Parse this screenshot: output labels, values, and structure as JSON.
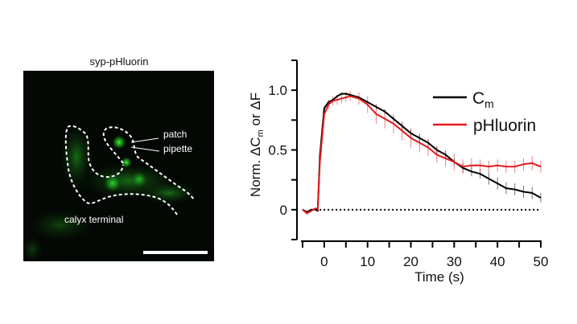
{
  "micrograph": {
    "title": "syp-pHluorin",
    "label_patch": "patch",
    "label_pipette": "pipette",
    "label_calyx": "calyx terminal",
    "fluorescence_color": "#22cc22"
  },
  "chart_data": {
    "type": "line",
    "title": "",
    "xlabel": "Time (s)",
    "ylabel_parts": {
      "prefix": "Norm. ΔC",
      "sub": "m",
      "suffix": " or ΔF"
    },
    "xlim": [
      -5,
      50
    ],
    "ylim": [
      -0.25,
      1.25
    ],
    "xticks": [
      0,
      10,
      20,
      30,
      40,
      50
    ],
    "xticks_minor": [
      -5,
      5,
      15,
      25,
      35,
      45
    ],
    "yticks": [
      0,
      0.5,
      1.0
    ],
    "ytick_labels": [
      "0",
      "0.5",
      "1.0"
    ],
    "yticks_minor": [
      0.25,
      0.75
    ],
    "baseline": 0,
    "legend_position": "top-right",
    "series": [
      {
        "name": "C",
        "name_sub": "m",
        "color": "#000000",
        "x": [
          -5,
          -4,
          -3,
          -2,
          -1.5,
          -1,
          0,
          1,
          2,
          3,
          4,
          5,
          6,
          8,
          10,
          12,
          14,
          16,
          18,
          20,
          22,
          24,
          26,
          28,
          30,
          32,
          34,
          36,
          38,
          40,
          42,
          44,
          46,
          48,
          50
        ],
        "y": [
          0,
          -0.02,
          0,
          0,
          -0.01,
          0.45,
          0.85,
          0.9,
          0.92,
          0.95,
          0.97,
          0.97,
          0.96,
          0.94,
          0.9,
          0.86,
          0.82,
          0.76,
          0.7,
          0.64,
          0.6,
          0.56,
          0.5,
          0.46,
          0.4,
          0.35,
          0.32,
          0.3,
          0.26,
          0.22,
          0.18,
          0.17,
          0.15,
          0.14,
          0.1
        ],
        "err": [
          0,
          0,
          0,
          0,
          0,
          0,
          0.01,
          0.01,
          0.01,
          0.01,
          0.01,
          0.01,
          0.01,
          0.01,
          0.01,
          0.02,
          0.02,
          0.02,
          0.03,
          0.03,
          0.03,
          0.03,
          0.03,
          0.03,
          0.03,
          0.04,
          0.04,
          0.04,
          0.05,
          0.05,
          0.05,
          0.05,
          0.05,
          0.05,
          0.04
        ]
      },
      {
        "name": "pHluorin",
        "name_sub": "",
        "color": "#e41a1c",
        "x": [
          -5,
          -4,
          -3,
          -2,
          -1.5,
          -1,
          0,
          1,
          2,
          3,
          4,
          5,
          6,
          8,
          10,
          12,
          14,
          16,
          18,
          20,
          22,
          24,
          26,
          28,
          30,
          32,
          34,
          36,
          38,
          40,
          42,
          44,
          46,
          48,
          50
        ],
        "y": [
          0,
          -0.03,
          -0.01,
          0.01,
          0,
          0.4,
          0.8,
          0.88,
          0.91,
          0.92,
          0.93,
          0.94,
          0.95,
          0.93,
          0.88,
          0.8,
          0.76,
          0.72,
          0.66,
          0.6,
          0.56,
          0.52,
          0.46,
          0.43,
          0.4,
          0.36,
          0.37,
          0.37,
          0.36,
          0.37,
          0.36,
          0.36,
          0.38,
          0.39,
          0.36
        ],
        "err": [
          0.01,
          0.01,
          0.01,
          0.01,
          0.01,
          0.02,
          0.03,
          0.04,
          0.04,
          0.04,
          0.04,
          0.04,
          0.04,
          0.05,
          0.07,
          0.08,
          0.08,
          0.08,
          0.08,
          0.08,
          0.08,
          0.07,
          0.07,
          0.07,
          0.07,
          0.06,
          0.06,
          0.05,
          0.05,
          0.05,
          0.05,
          0.05,
          0.05,
          0.06,
          0.05
        ]
      }
    ]
  }
}
